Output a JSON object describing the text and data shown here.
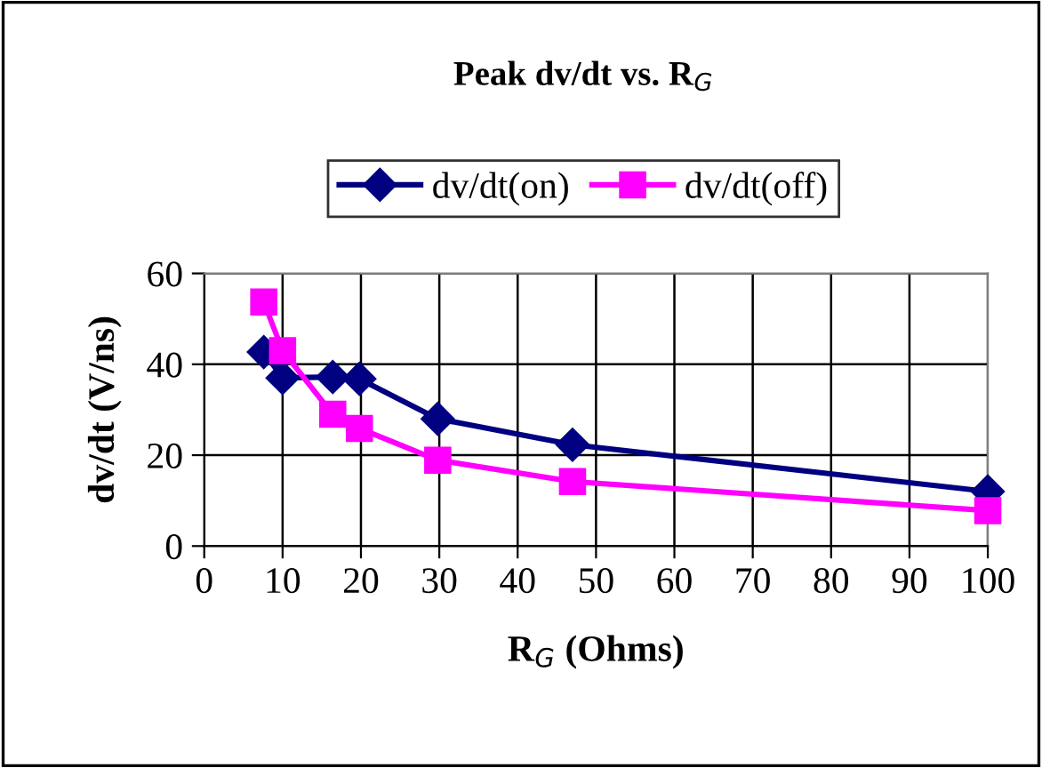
{
  "chart_data": {
    "type": "line",
    "title": "Peak dv/dt vs. R$_{G}$",
    "xlabel": "R$_{G}$ (Ohms)",
    "ylabel": "dv/dt (V/ns)",
    "x": [
      7.6,
      10,
      16.4,
      19.8,
      29.8,
      47,
      100
    ],
    "series": [
      {
        "name": "dv/dt(on)",
        "color": "#000080",
        "marker": "diamond",
        "values": [
          42.7,
          37,
          37.2,
          36.8,
          28,
          22.3,
          12
        ]
      },
      {
        "name": "dv/dt(off)",
        "color": "#ff00ff",
        "marker": "square",
        "values": [
          53.7,
          43,
          29,
          25.9,
          18.9,
          14.2,
          7.8
        ]
      }
    ],
    "xlim": [
      0,
      100
    ],
    "xticks": [
      0,
      10,
      20,
      30,
      40,
      50,
      60,
      70,
      80,
      90,
      100
    ],
    "ylim": [
      0,
      60
    ],
    "yticks": [
      0,
      20,
      40,
      60
    ],
    "grid": true,
    "legend": "top",
    "line_style": "solid"
  }
}
